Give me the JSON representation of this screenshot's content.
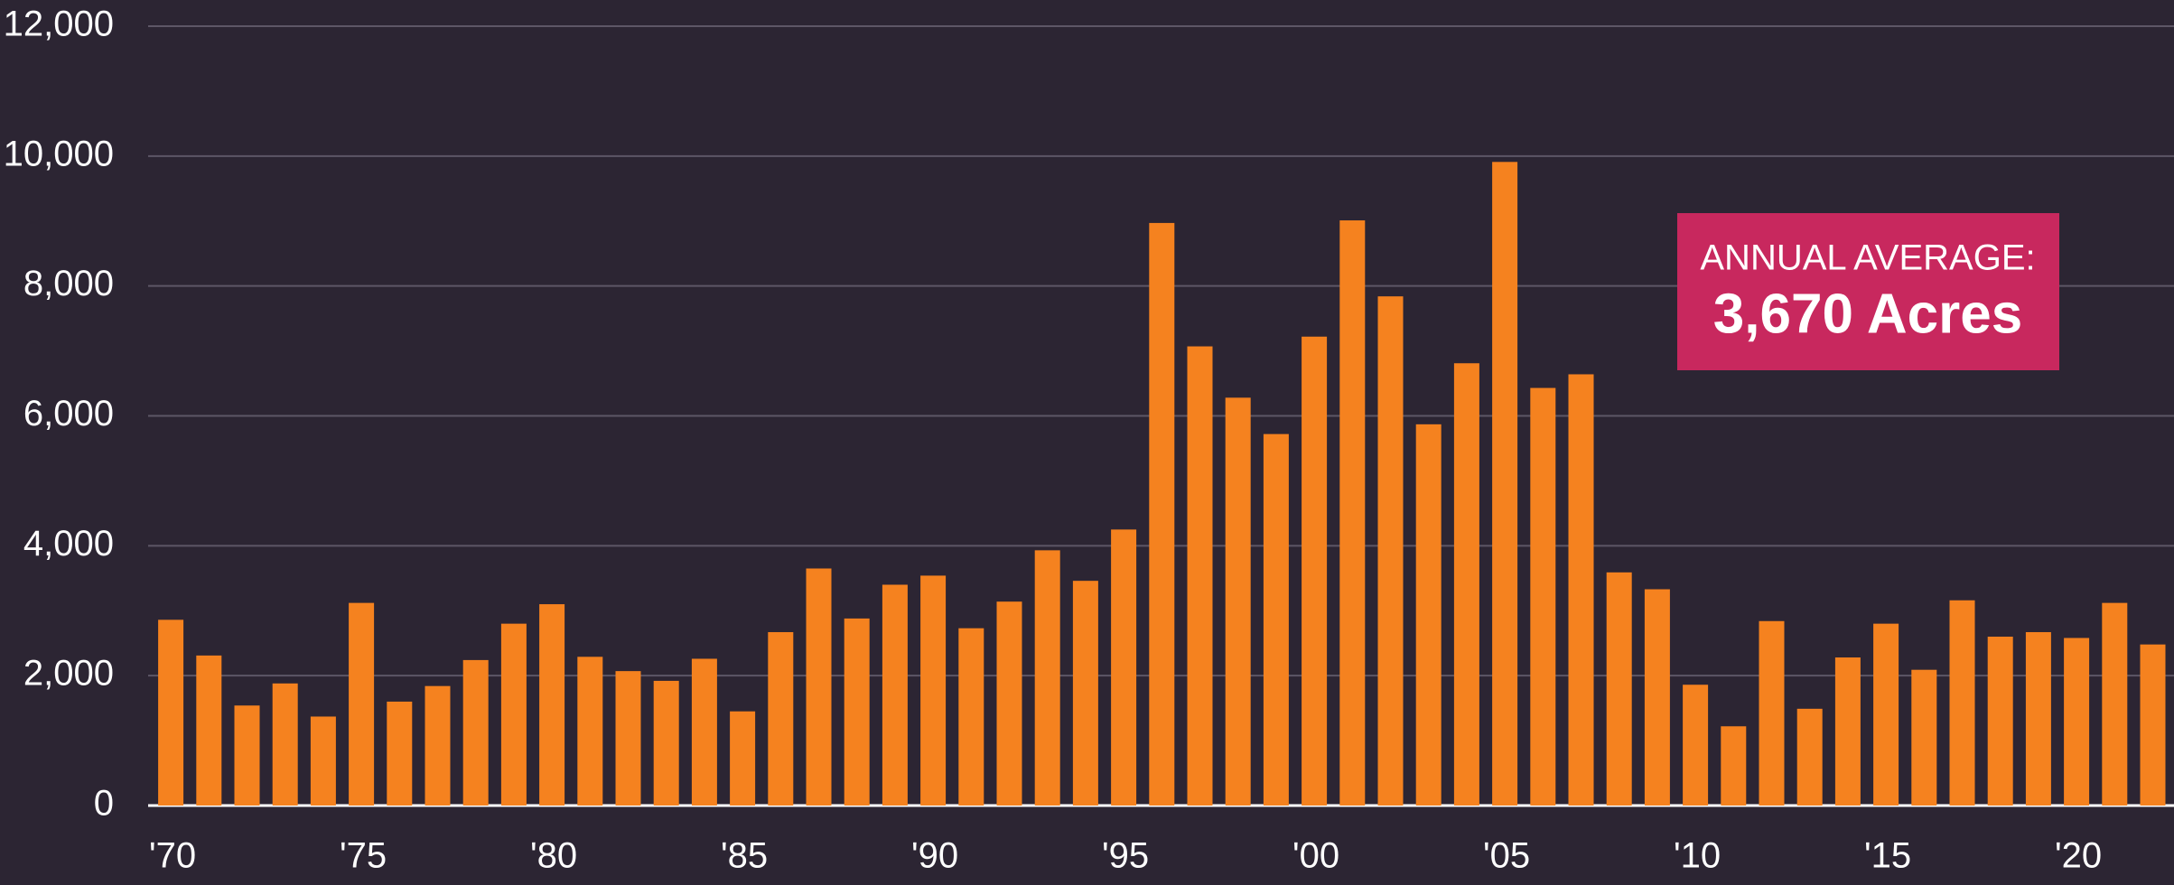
{
  "chart_data": {
    "type": "bar",
    "categories": [
      "'70",
      null,
      null,
      null,
      null,
      "'75",
      null,
      null,
      null,
      null,
      "'80",
      null,
      null,
      null,
      null,
      "'85",
      null,
      null,
      null,
      null,
      "'90",
      null,
      null,
      null,
      null,
      "'95",
      null,
      null,
      null,
      null,
      "'00",
      null,
      null,
      null,
      null,
      "'05",
      null,
      null,
      null,
      null,
      "'10",
      null,
      null,
      null,
      null,
      "'15",
      null,
      null,
      null,
      null,
      "'20",
      null,
      null
    ],
    "values": [
      2860,
      2310,
      1540,
      1880,
      1370,
      3120,
      1600,
      1840,
      2240,
      2800,
      3100,
      2290,
      2070,
      1920,
      2260,
      1450,
      2670,
      3650,
      2880,
      3400,
      3540,
      2730,
      3140,
      3930,
      3460,
      4250,
      8970,
      7070,
      6280,
      5720,
      7220,
      9010,
      7840,
      5870,
      6810,
      9910,
      6430,
      6640,
      3590,
      3330,
      1860,
      1220,
      2840,
      1490,
      2280,
      2800,
      2090,
      3160,
      2600,
      2670,
      2580,
      3120,
      2480
    ],
    "color": "#f5821f",
    "ylim": [
      0,
      12000
    ],
    "yticks": [
      0,
      {
        "value": 2000,
        "label": "2,000"
      },
      {
        "value": 4000,
        "label": "4,000"
      },
      {
        "value": 6000,
        "label": "6,000"
      },
      {
        "value": 8000,
        "label": "8,000"
      },
      {
        "value": 10000,
        "label": "10,000"
      },
      {
        "value": 12000,
        "label": "12,000"
      }
    ],
    "grid": true,
    "annotation": {
      "title": "ANNUAL AVERAGE:",
      "text": "3,670 Acres"
    }
  }
}
